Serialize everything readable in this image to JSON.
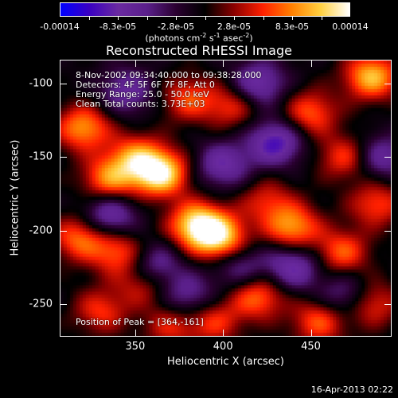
{
  "colorbar": {
    "ticks": [
      "-0.00014",
      "-8.3e-05",
      "-2.8e-05",
      "2.8e-05",
      "8.3e-05",
      "0.00014"
    ],
    "units_text": "(photons cm",
    "units_sup1": "-2",
    "units_mid": " s",
    "units_sup2": "-1",
    "units_end": " asec",
    "units_sup3": "-2",
    "units_close": ")"
  },
  "title": "Reconstructed RHESSI Image",
  "info": {
    "line1": "8-Nov-2002 09:34:40.000 to 09:38:28.000",
    "line2": "Detectors: 4F 5F 6F 7F 8F, Att 0",
    "line3": "Energy Range: 25.0 - 50.0 keV",
    "line4": "Clean    Total counts: 3.73E+03",
    "peak": "Position of Peak = [364,-161]"
  },
  "footer": "16-Apr-2013 02:22",
  "chart_data": {
    "type": "heatmap",
    "title": "Reconstructed RHESSI Image",
    "xlabel": "Heliocentric X (arcsec)",
    "ylabel": "Heliocentric Y (arcsec)",
    "xlim": [
      307,
      496
    ],
    "ylim": [
      -272,
      -84
    ],
    "x_ticks": [
      350,
      400,
      450
    ],
    "y_ticks": [
      -100,
      -150,
      -200,
      -250
    ],
    "color_range": [
      -0.00014,
      0.00014
    ],
    "colormap": [
      "#0000ff",
      "#3a00c0",
      "#6a2aa0",
      "#5a1f8a",
      "#2a0030",
      "#000000",
      "#8a0000",
      "#ff2000",
      "#ff8000",
      "#ffd040",
      "#ffffff"
    ],
    "peak_position": [
      364,
      -161
    ],
    "blobs": [
      {
        "x": 364,
        "y": -161,
        "amp": 1.0
      },
      {
        "x": 385,
        "y": -196,
        "amp": 0.9
      },
      {
        "x": 398,
        "y": -205,
        "amp": 0.85
      },
      {
        "x": 320,
        "y": -130,
        "amp": 0.7
      },
      {
        "x": 335,
        "y": -165,
        "amp": 0.65
      },
      {
        "x": 350,
        "y": -150,
        "amp": 0.6
      },
      {
        "x": 318,
        "y": -205,
        "amp": 0.6
      },
      {
        "x": 340,
        "y": -215,
        "amp": 0.55
      },
      {
        "x": 355,
        "y": -235,
        "amp": 0.5
      },
      {
        "x": 330,
        "y": -255,
        "amp": 0.45
      },
      {
        "x": 380,
        "y": -110,
        "amp": 0.5
      },
      {
        "x": 405,
        "y": -115,
        "amp": 0.45
      },
      {
        "x": 450,
        "y": -120,
        "amp": 0.55
      },
      {
        "x": 485,
        "y": -95,
        "amp": 0.8
      },
      {
        "x": 470,
        "y": -150,
        "amp": 0.5
      },
      {
        "x": 440,
        "y": -198,
        "amp": 0.7
      },
      {
        "x": 468,
        "y": -215,
        "amp": 0.55
      },
      {
        "x": 488,
        "y": -182,
        "amp": 0.5
      },
      {
        "x": 420,
        "y": -245,
        "amp": 0.6
      },
      {
        "x": 455,
        "y": -262,
        "amp": 0.55
      },
      {
        "x": 395,
        "y": -262,
        "amp": 0.45
      },
      {
        "x": 485,
        "y": -250,
        "amp": 0.5
      },
      {
        "x": 425,
        "y": -180,
        "amp": 0.4
      },
      {
        "x": 370,
        "y": -265,
        "amp": 0.4
      },
      {
        "x": 360,
        "y": -225,
        "amp": -0.6
      },
      {
        "x": 430,
        "y": -140,
        "amp": -0.7
      },
      {
        "x": 400,
        "y": -155,
        "amp": -0.55
      },
      {
        "x": 420,
        "y": -100,
        "amp": -0.6
      },
      {
        "x": 335,
        "y": -190,
        "amp": -0.6
      },
      {
        "x": 440,
        "y": -225,
        "amp": -0.6
      },
      {
        "x": 490,
        "y": -150,
        "amp": -0.5
      },
      {
        "x": 380,
        "y": -245,
        "amp": -0.45
      },
      {
        "x": 470,
        "y": -245,
        "amp": -0.45
      },
      {
        "x": 345,
        "y": -105,
        "amp": -0.5
      },
      {
        "x": 410,
        "y": -225,
        "amp": -0.4
      }
    ]
  }
}
